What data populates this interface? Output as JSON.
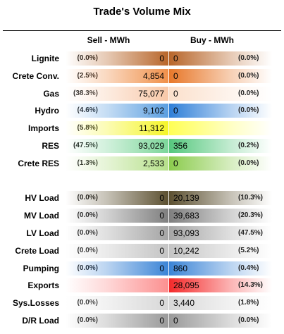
{
  "title": "Trade's Volume Mix",
  "sell_header": "Sell - MWh",
  "buy_header": "Buy - MWh",
  "chart_data": {
    "type": "table",
    "columns": [
      "Sell - MWh",
      "Buy - MWh"
    ],
    "rows": [
      {
        "label": "Lignite",
        "sell_pct": "(0.0%)",
        "sell": "0",
        "buy": "0",
        "buy_pct": "(0.0%)",
        "sell_color": "#b8662a",
        "buy_color": "#b8662a"
      },
      {
        "label": "Crete Conv.",
        "sell_pct": "(2.5%)",
        "sell": "4,854",
        "buy": "0",
        "buy_pct": "(0.0%)",
        "sell_color": "#f0904a",
        "buy_color": "#e8782a"
      },
      {
        "label": "Gas",
        "sell_pct": "(38.3%)",
        "sell": "75,077",
        "buy": "0",
        "buy_pct": "(0.0%)",
        "sell_color": "#f8c8a8",
        "buy_color": "#fbe0cc"
      },
      {
        "label": "Hydro",
        "sell_pct": "(4.6%)",
        "sell": "9,102",
        "buy": "0",
        "buy_pct": "(0.0%)",
        "sell_color": "#5a9ee0",
        "buy_color": "#2f7fd8"
      },
      {
        "label": "Imports",
        "sell_pct": "(5.8%)",
        "sell": "11,312",
        "buy": "",
        "buy_pct": "",
        "sell_color": "#f5f528",
        "buy_color": "#ffff55"
      },
      {
        "label": "RES",
        "sell_pct": "(47.5%)",
        "sell": "93,029",
        "buy": "356",
        "buy_pct": "(0.2%)",
        "sell_color": "#7cd69a",
        "buy_color": "#56c87e"
      },
      {
        "label": "Crete RES",
        "sell_pct": "(1.3%)",
        "sell": "2,533",
        "buy": "0",
        "buy_pct": "(0.0%)",
        "sell_color": "#b6e08a",
        "buy_color": "#8ccc4e"
      },
      {
        "label": "",
        "sell_pct": "",
        "sell": "",
        "buy": "",
        "buy_pct": "",
        "sell_color": "",
        "buy_color": ""
      },
      {
        "label": "HV Load",
        "sell_pct": "(0.0%)",
        "sell": "0",
        "buy": "20,139",
        "buy_pct": "(10.3%)",
        "sell_color": "#5c5030",
        "buy_color": "#5c5030"
      },
      {
        "label": "MV Load",
        "sell_pct": "(0.0%)",
        "sell": "0",
        "buy": "39,683",
        "buy_pct": "(20.3%)",
        "sell_color": "#7f7f7f",
        "buy_color": "#7f7f7f"
      },
      {
        "label": "LV Load",
        "sell_pct": "(0.0%)",
        "sell": "0",
        "buy": "93,093",
        "buy_pct": "(47.5%)",
        "sell_color": "#a5a5a5",
        "buy_color": "#a5a5a5"
      },
      {
        "label": "Crete Load",
        "sell_pct": "(0.0%)",
        "sell": "0",
        "buy": "10,242",
        "buy_pct": "(5.2%)",
        "sell_color": "#c4c4c4",
        "buy_color": "#c4c4c4"
      },
      {
        "label": "Pumping",
        "sell_pct": "(0.0%)",
        "sell": "0",
        "buy": "860",
        "buy_pct": "(0.4%)",
        "sell_color": "#3b84d6",
        "buy_color": "#3b84d6"
      },
      {
        "label": "Exports",
        "sell_pct": "",
        "sell": "",
        "buy": "28,095",
        "buy_pct": "(14.3%)",
        "sell_color": "#fc9090",
        "buy_color": "#f42a2a"
      },
      {
        "label": "Sys.Losses",
        "sell_pct": "(0.0%)",
        "sell": "0",
        "buy": "3,440",
        "buy_pct": "(1.8%)",
        "sell_color": "#d8d8d8",
        "buy_color": "#d8d8d8"
      },
      {
        "label": "D/R Load",
        "sell_pct": "(0.0%)",
        "sell": "0",
        "buy": "0",
        "buy_pct": "(0.0%)",
        "sell_color": "#9a9a9a",
        "buy_color": "#9a9a9a"
      }
    ]
  }
}
